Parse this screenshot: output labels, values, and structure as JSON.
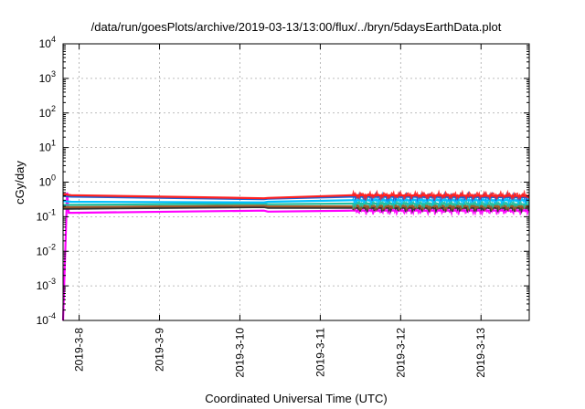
{
  "chart_data": {
    "type": "line",
    "title": "/data/run/goesPlots/archive/2019-03-13/13:00/flux/../bryn/5daysEarthData.plot",
    "xlabel": "Coordinated Universal Time (UTC)",
    "ylabel": "cGy/day",
    "x_range": [
      2019.378,
      2019.3758
    ],
    "x_tick_labels": [
      "2019-3-8",
      "2019-3-9",
      "2019-3-10",
      "2019-3-11",
      "2019-3-12",
      "2019-3-13"
    ],
    "x_tick_days": [
      8,
      9,
      10,
      11,
      12,
      13
    ],
    "x_day_range": [
      7.8,
      13.6
    ],
    "y_scale": "log",
    "ylim": [
      0.0001,
      10000
    ],
    "y_tick_values": [
      0.0001,
      0.001,
      0.01,
      0.1,
      1,
      10,
      100,
      1000,
      10000
    ],
    "y_tick_labels": [
      {
        "base": "10",
        "exp": "-4"
      },
      {
        "base": "10",
        "exp": "-3"
      },
      {
        "base": "10",
        "exp": "-2"
      },
      {
        "base": "10",
        "exp": "-1"
      },
      {
        "base": "10",
        "exp": "0"
      },
      {
        "base": "10",
        "exp": "1"
      },
      {
        "base": "10",
        "exp": "2"
      },
      {
        "base": "10",
        "exp": "3"
      },
      {
        "base": "10",
        "exp": "4"
      }
    ],
    "grid": true,
    "series": [
      {
        "color": "#ff00ff",
        "x": [
          7.8,
          7.85,
          7.87,
          7.9,
          10.3,
          10.35,
          11.4,
          13.6
        ],
        "y": [
          0.0001,
          0.5,
          0.13,
          0.13,
          0.15,
          0.14,
          0.15,
          0.15
        ]
      },
      {
        "color": "#2e2e2e",
        "x": [
          7.8,
          7.9,
          10.3,
          10.35,
          11.4,
          13.6
        ],
        "y": [
          0.17,
          0.17,
          0.19,
          0.18,
          0.18,
          0.18
        ]
      },
      {
        "color": "#a05a2c",
        "x": [
          7.8,
          7.9,
          10.3,
          10.35,
          11.4,
          13.6
        ],
        "y": [
          0.19,
          0.19,
          0.21,
          0.2,
          0.2,
          0.2
        ]
      },
      {
        "color": "#20c0a0",
        "x": [
          7.8,
          7.9,
          10.3,
          10.35,
          11.4,
          13.6
        ],
        "y": [
          0.22,
          0.22,
          0.24,
          0.23,
          0.24,
          0.23
        ]
      },
      {
        "color": "#00bfff",
        "x": [
          7.8,
          7.9,
          10.3,
          10.35,
          11.4,
          13.6
        ],
        "y": [
          0.28,
          0.27,
          0.26,
          0.27,
          0.3,
          0.3
        ]
      },
      {
        "color": "#1e5fd0",
        "x": [
          7.8,
          7.9,
          10.3,
          10.35,
          11.4,
          13.6
        ],
        "y": [
          0.4,
          0.38,
          0.32,
          0.33,
          0.38,
          0.37
        ]
      },
      {
        "color": "#ff2020",
        "x": [
          7.8,
          7.9,
          10.3,
          10.35,
          11.4,
          13.6
        ],
        "y": [
          0.45,
          0.42,
          0.34,
          0.35,
          0.42,
          0.4
        ]
      }
    ]
  }
}
